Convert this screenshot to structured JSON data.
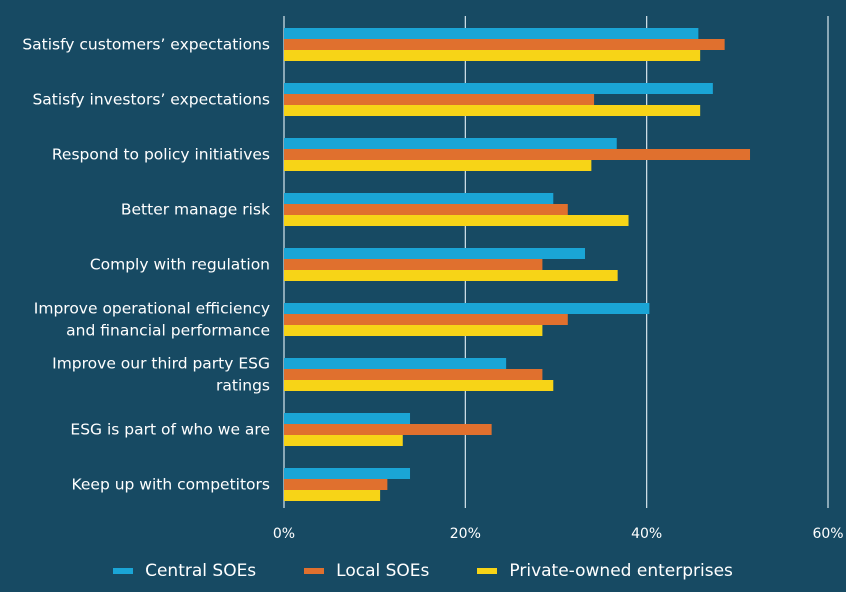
{
  "chart_data": {
    "type": "bar",
    "orientation": "horizontal",
    "categories": [
      [
        "Satisfy customers’ expectations"
      ],
      [
        "Satisfy investors’ expectations"
      ],
      [
        "Respond to policy initiatives"
      ],
      [
        "Better manage risk"
      ],
      [
        "Comply with regulation"
      ],
      [
        "Improve operational efficiency",
        "and financial performance"
      ],
      [
        "Improve our third party ESG",
        "ratings"
      ],
      [
        "ESG is part of who we are"
      ],
      [
        "Keep up with competitors"
      ]
    ],
    "series": [
      {
        "name": "Central SOEs",
        "color": "#1aa5d6",
        "values": [
          45.7,
          47.3,
          36.7,
          29.7,
          33.2,
          40.3,
          24.5,
          13.9,
          13.9
        ]
      },
      {
        "name": "Local SOEs",
        "color": "#e0702e",
        "values": [
          48.6,
          34.2,
          51.4,
          31.3,
          28.5,
          31.3,
          28.5,
          22.9,
          11.4
        ]
      },
      {
        "name": "Private-owned enterprises",
        "color": "#f7d417",
        "values": [
          45.9,
          45.9,
          33.9,
          38.0,
          36.8,
          28.5,
          29.7,
          13.1,
          10.6
        ]
      }
    ],
    "x_ticks": [
      0,
      20,
      40,
      60
    ],
    "x_tick_labels": [
      "0%",
      "20%",
      "40%",
      "60%"
    ],
    "xlim": [
      0,
      60
    ],
    "grid": true,
    "legend_position": "bottom",
    "title": "",
    "xlabel": "",
    "ylabel": ""
  }
}
